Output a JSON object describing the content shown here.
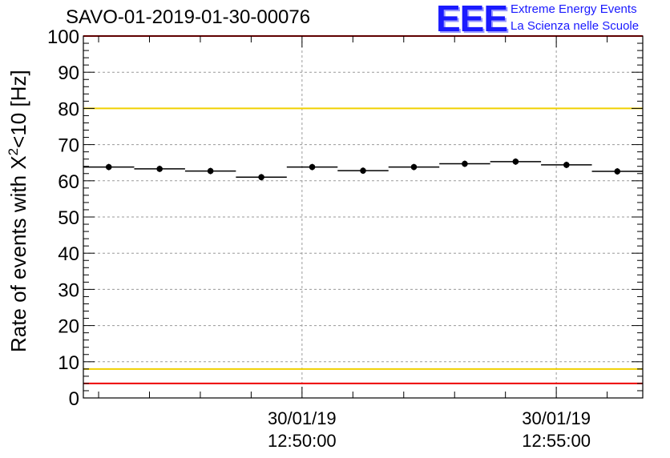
{
  "chart_data": {
    "type": "scatter",
    "title": "SAVO-01-2019-01-30-00076",
    "ylabel": "Rate of events with X",
    "ylabel_sup": "2",
    "ylabel_rest": "<10 [Hz]",
    "ylim": [
      0,
      100
    ],
    "yticks": [
      0,
      10,
      20,
      30,
      40,
      50,
      60,
      70,
      80,
      90,
      100
    ],
    "xlim_minutes": [
      0,
      11
    ],
    "xtick_labels": [
      {
        "at": 4.3,
        "date": "30/01/19",
        "time": "12:50:00"
      },
      {
        "at": 9.3,
        "date": "30/01/19",
        "time": "12:55:00"
      }
    ],
    "grid": true,
    "series": [
      {
        "name": "rate",
        "bin_width": 1,
        "bin_centers": [
          0.5,
          1.5,
          2.5,
          3.5,
          4.5,
          5.5,
          6.5,
          7.5,
          8.5,
          9.5,
          10.5
        ],
        "values": [
          63.8,
          63.3,
          62.7,
          61.0,
          63.8,
          62.8,
          63.8,
          64.7,
          65.3,
          64.4,
          62.6
        ]
      }
    ],
    "reference_lines": [
      {
        "y": 100,
        "color": "#ee0000"
      },
      {
        "y": 80,
        "color": "#f0d000"
      },
      {
        "y": 8,
        "color": "#f0d000"
      },
      {
        "y": 4,
        "color": "#ee0000"
      }
    ]
  },
  "logo": {
    "mark": "EEE",
    "line1": "Extreme Energy Events",
    "line2": "La Scienza nelle Scuole"
  }
}
